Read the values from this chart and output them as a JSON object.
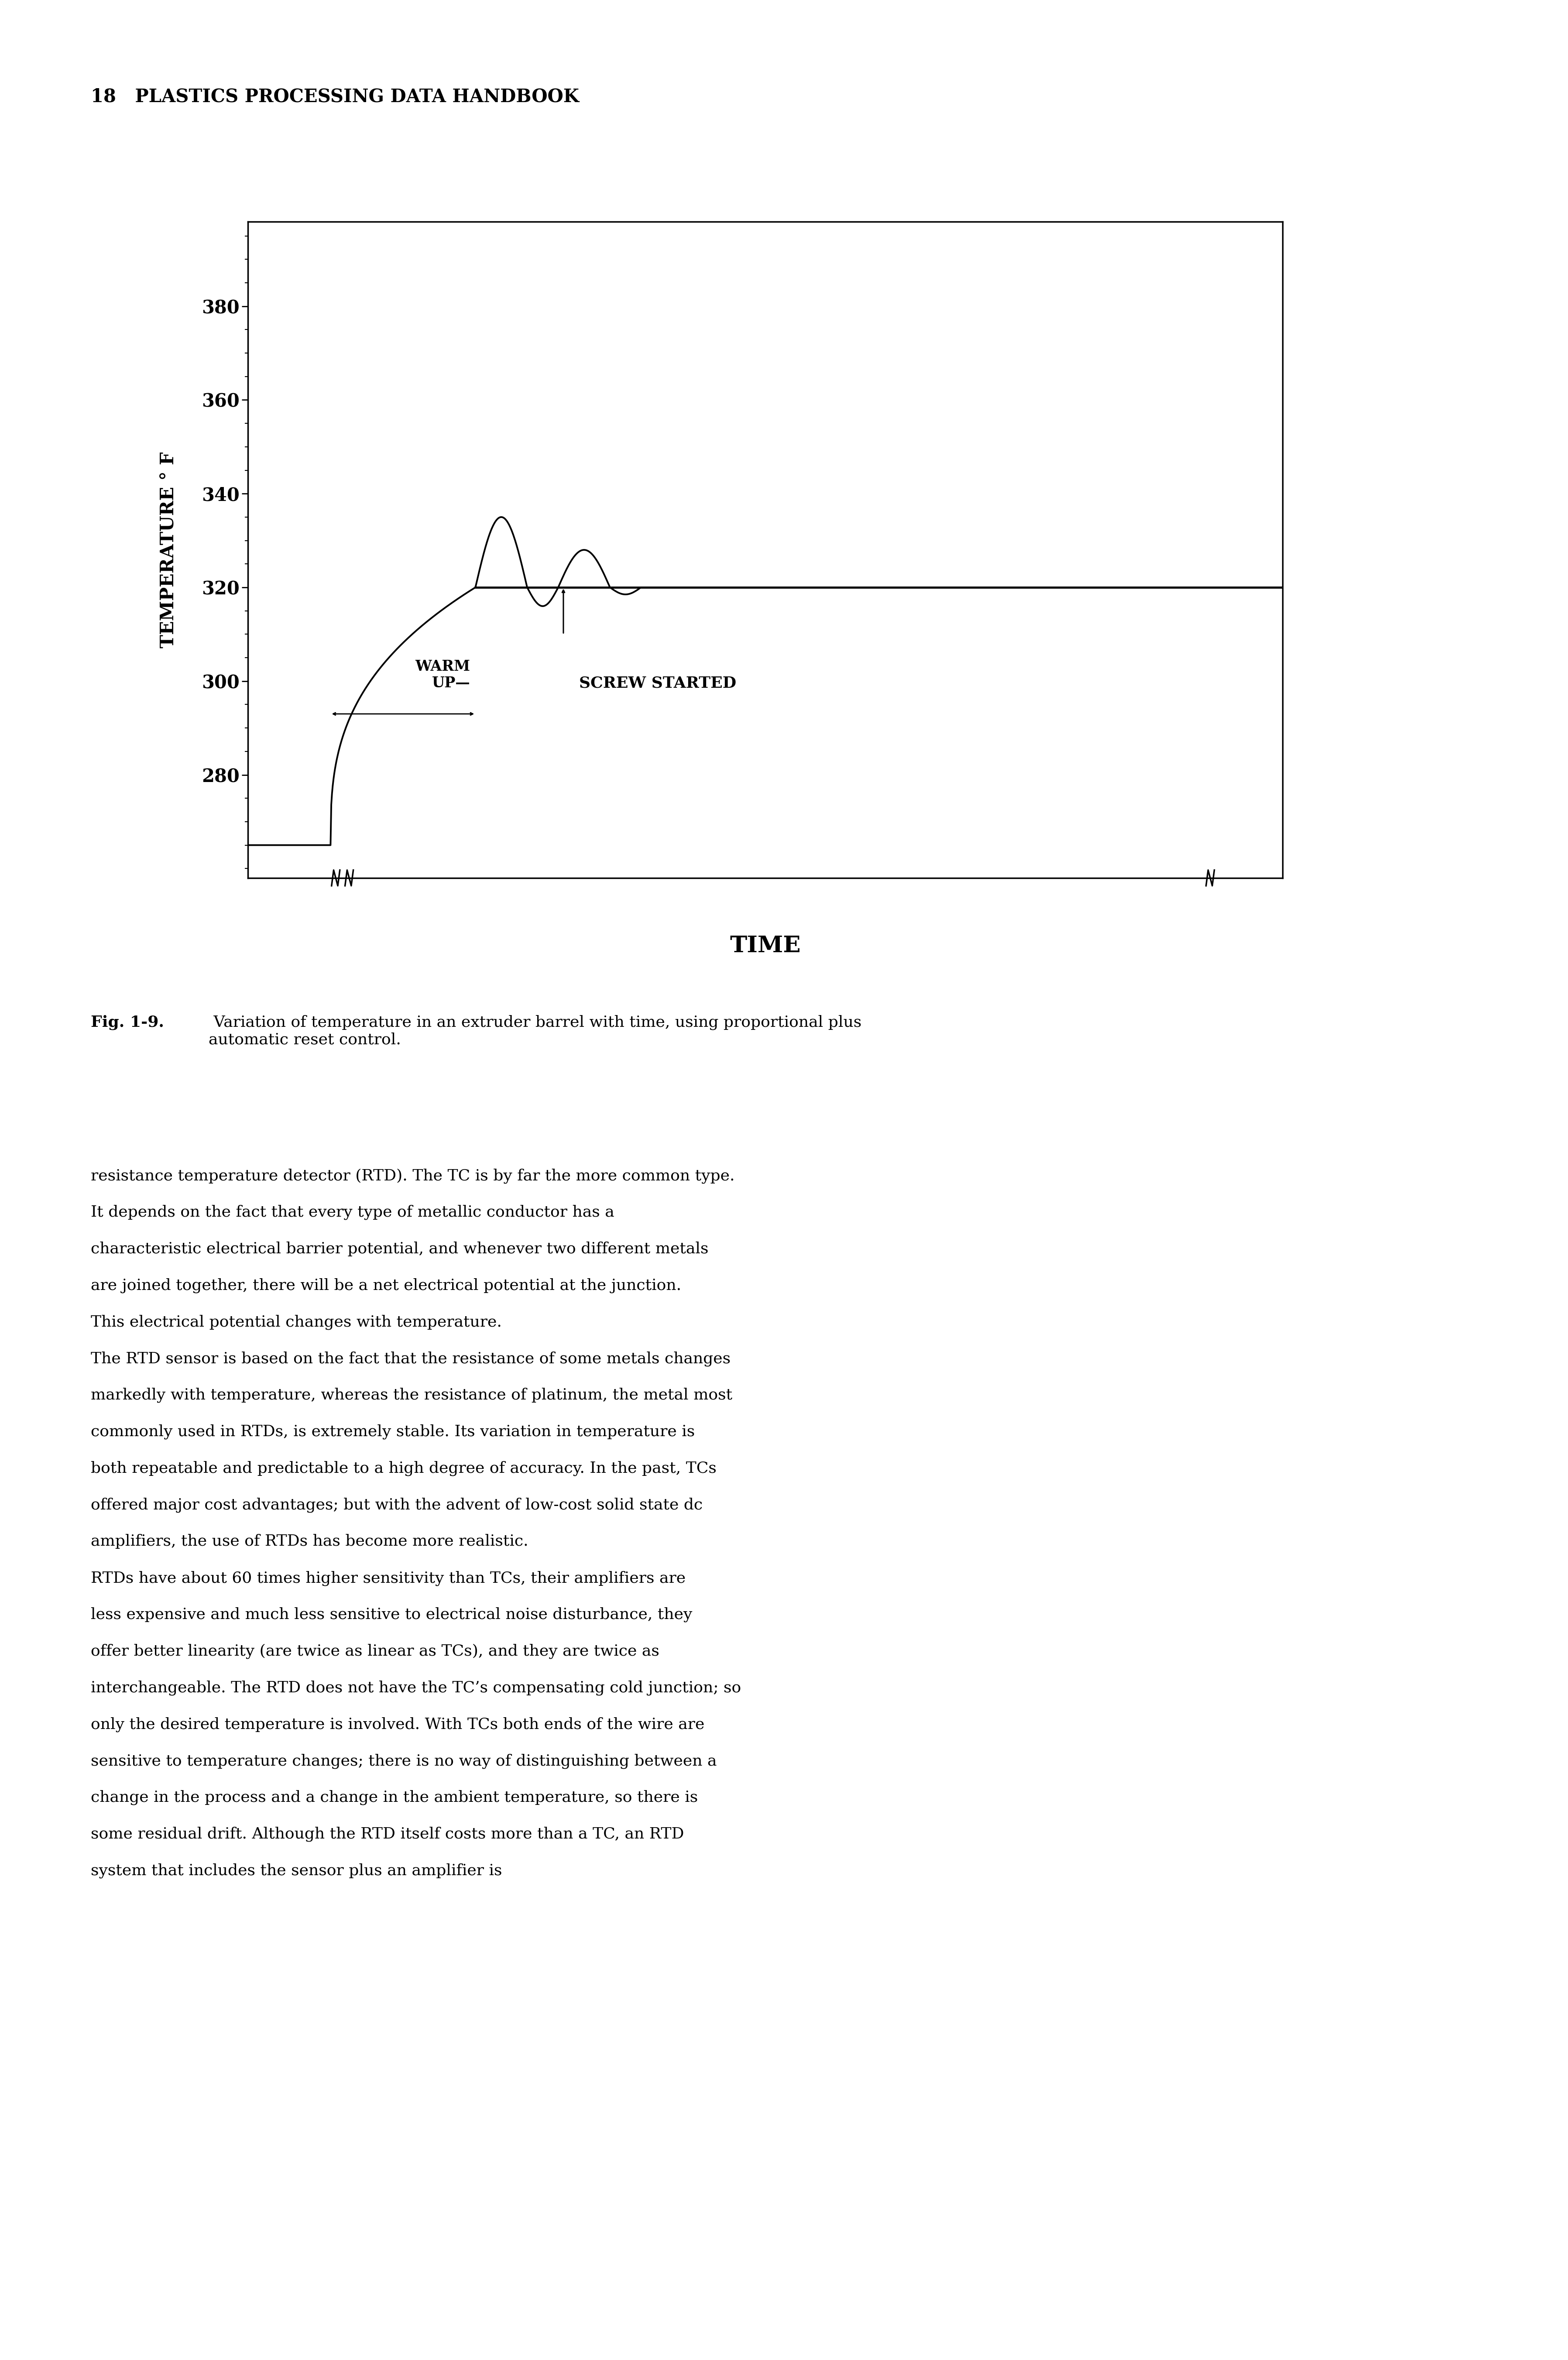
{
  "page_header": "18   PLASTICS PROCESSING DATA HANDBOOK",
  "fig_caption_bold": "Fig. 1-9.",
  "fig_caption_normal": " Variation of temperature in an extruder barrel with time, using proportional plus\nautomatic reset control.",
  "xlabel": "TIME",
  "ylabel": "TEMPERATURE ° F",
  "yticks": [
    280,
    300,
    320,
    340,
    360,
    380
  ],
  "ylim": [
    258,
    398
  ],
  "xlim": [
    0,
    100
  ],
  "setpoint": 320,
  "background_color": "#ffffff",
  "line_color": "#000000",
  "warm_up_label": "WARM\nUP—",
  "screw_label": "SCREW STARTED",
  "body_paragraphs": [
    "resistance temperature detector (RTD). The TC is by far the more common type. It depends on the fact that every type of metallic conductor has a characteristic electrical barrier potential, and whenever two different metals are joined together, there will be a net electrical potential at the junction. This electrical potential changes with temperature.",
    "    The RTD sensor is based on the fact that the resistance of some metals changes markedly with temperature, whereas the resistance of platinum, the metal most commonly used in RTDs, is extremely stable. Its variation in temperature is both repeatable and predictable to a high degree of accuracy. In the past, TCs offered major cost advantages; but with the advent of low-cost solid state dc amplifiers, the use of RTDs has become more realistic.",
    "    RTDs have about 60 times higher sensitivity than TCs, their amplifiers are less expensive and much less sensitive to electrical noise disturbance, they offer better linearity (are twice as linear as TCs), and they are twice as interchangeable. The RTD does not have the TC’s compensating cold junction; so only the desired temperature is involved. With TCs both ends of the wire are sensitive to temperature changes; there is no way of distinguishing between a change in the process and a change in the ambient temperature, so there is some residual drift. Although the RTD itself costs more than a TC, an RTD system that includes the sensor plus an amplifier is"
  ]
}
